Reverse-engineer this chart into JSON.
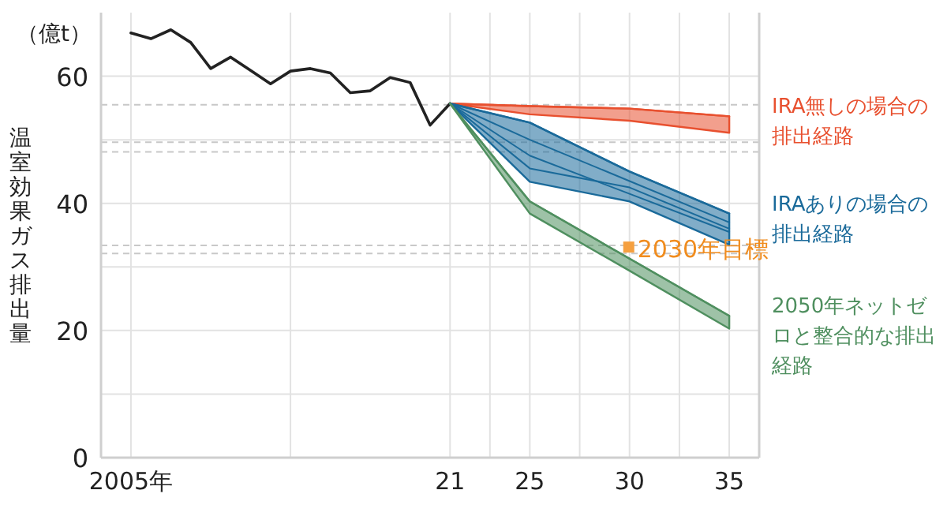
{
  "chart_data": {
    "type": "line",
    "ylabel": "温室効果ガス排出量",
    "annotations": [
      "（億t）",
      {
        "text": "2030年目標",
        "x": 2030,
        "y": 33
      }
    ],
    "xlim": [
      2003.5,
      2036.5
    ],
    "ylim": [
      0,
      70
    ],
    "xticks": [
      {
        "value": 2005,
        "label": "2005年"
      },
      {
        "value": 2013,
        "label": null
      },
      {
        "value": 2021,
        "label": "21"
      },
      {
        "value": 2023,
        "label": null
      },
      {
        "value": 2025,
        "label": "25"
      },
      {
        "value": 2027.5,
        "label": null
      },
      {
        "value": 2030,
        "label": "30"
      },
      {
        "value": 2032.5,
        "label": null
      },
      {
        "value": 2035,
        "label": "35"
      }
    ],
    "yticks": [
      0,
      {
        "value": 10,
        "label": null
      },
      20,
      {
        "value": 30,
        "label": null
      },
      40,
      {
        "value": 50,
        "label": null
      },
      60
    ],
    "grid": true,
    "legend": false,
    "marker": "none",
    "line_style": "solid",
    "ref_lines": [
      {
        "axis": "y",
        "value": 55.5,
        "color": "#c8c8c8",
        "line_style": "dashed"
      },
      {
        "axis": "y",
        "value": 49.6,
        "color": "#c8c8c8",
        "line_style": "dashed"
      },
      {
        "axis": "y",
        "value": 48.1,
        "color": "#c8c8c8",
        "line_style": "dashed"
      },
      {
        "axis": "y",
        "value": 33.4,
        "color": "#c8c8c8",
        "line_style": "dashed"
      },
      {
        "axis": "y",
        "value": 32.1,
        "color": "#c8c8c8",
        "line_style": "dashed"
      }
    ],
    "series": [
      {
        "color": "#222222",
        "x": [
          2005,
          2006,
          2007,
          2008,
          2009,
          2010,
          2011,
          2012,
          2013,
          2014,
          2015,
          2016,
          2017,
          2018,
          2019,
          2020,
          2021
        ],
        "values": [
          66.8,
          65.9,
          67.3,
          65.3,
          61.2,
          63.0,
          60.9,
          58.8,
          60.8,
          61.2,
          60.5,
          57.4,
          57.7,
          59.8,
          59.0,
          52.3,
          55.7
        ]
      },
      {
        "name": "IRA無しの場合の排出経路",
        "color": "#e8502f",
        "x": [
          2021,
          2025,
          2030,
          2035
        ],
        "values": [
          55.7,
          55.3,
          54.9,
          53.7
        ],
        "lower": [
          55.7,
          54.0,
          53.0,
          51.1
        ],
        "upper": [
          55.7,
          55.3,
          54.9,
          53.7
        ]
      },
      {
        "name": "IRAありの場合の排出経路",
        "color": "#1a6a9a",
        "x": [
          2021,
          2025,
          2030,
          2035
        ],
        "values": [
          55.7,
          52.7,
          45.0,
          38.4
        ],
        "lower": [
          55.7,
          43.4,
          40.3,
          33.5
        ],
        "upper": [
          55.7,
          52.7,
          45.0,
          38.4
        ]
      },
      {
        "color": "#1a6a9a",
        "x": [
          2021,
          2025,
          2030,
          2035
        ],
        "values": [
          55.7,
          50.0,
          43.5,
          37.0
        ]
      },
      {
        "color": "#1a6a9a",
        "x": [
          2021,
          2025,
          2030,
          2035
        ],
        "values": [
          55.7,
          47.5,
          41.5,
          35.5
        ]
      },
      {
        "color": "#1a6a9a",
        "x": [
          2021,
          2025,
          2030,
          2035
        ],
        "values": [
          55.7,
          45.5,
          42.5,
          36.0
        ]
      },
      {
        "name": "2050年ネットゼロと整合的な排出経路",
        "color": "#4f8f5f",
        "x": [
          2021,
          2025,
          2030,
          2035
        ],
        "values": [
          55.7,
          40.3,
          31.3,
          22.3
        ],
        "lower": [
          55.7,
          38.4,
          29.4,
          20.3
        ],
        "upper": [
          55.7,
          40.3,
          31.3,
          22.3
        ]
      }
    ]
  }
}
